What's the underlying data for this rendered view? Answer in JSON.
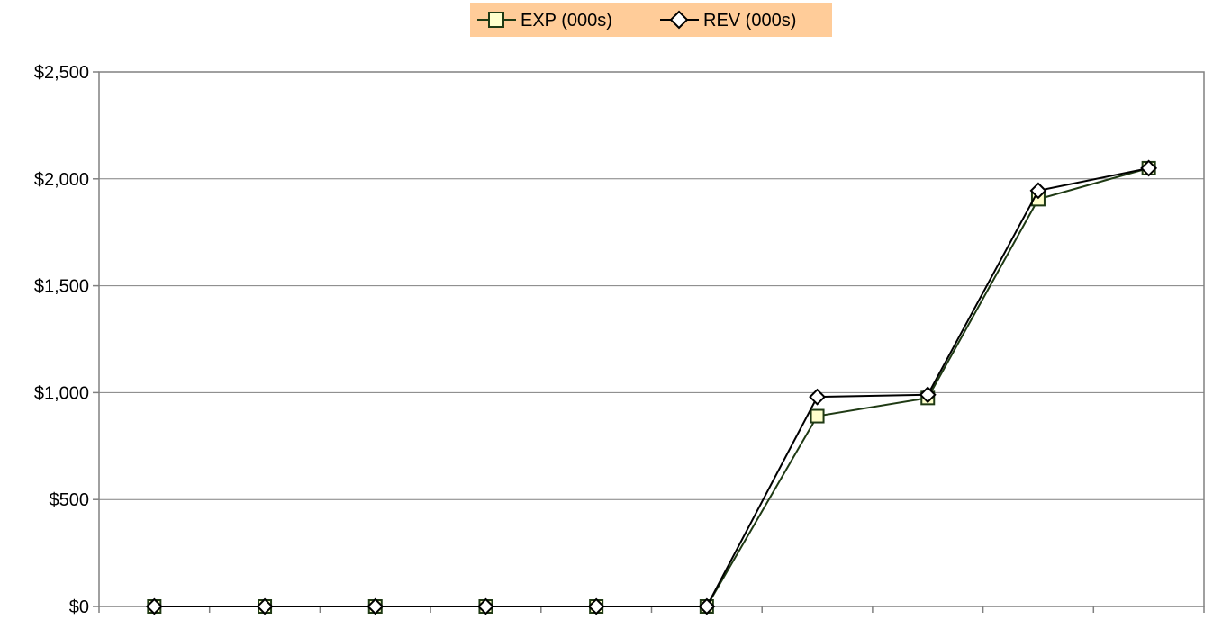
{
  "chart_data": {
    "type": "line",
    "x": [
      1,
      2,
      3,
      4,
      5,
      6,
      7,
      8,
      9,
      10
    ],
    "ylim": [
      0,
      2500
    ],
    "yticks": [
      0,
      500,
      1000,
      1500,
      2000,
      2500
    ],
    "ytick_labels": [
      "$0",
      "$500",
      "$1,000",
      "$1,500",
      "$2,000",
      "$2,500"
    ],
    "grid": "horizontal",
    "legend_position": "top",
    "legend_background": "#FFCC99",
    "series": [
      {
        "name": "EXP (000s)",
        "marker": "square",
        "color": "#1F3A14",
        "marker_fill": "#FFFFCC",
        "values": [
          0,
          0,
          0,
          0,
          0,
          0,
          890,
          975,
          1905,
          2050
        ]
      },
      {
        "name": "REV (000s)",
        "marker": "diamond",
        "color": "#000000",
        "marker_fill": "#FFFFFF",
        "values": [
          0,
          0,
          0,
          0,
          0,
          0,
          980,
          990,
          1945,
          2050
        ]
      }
    ]
  }
}
